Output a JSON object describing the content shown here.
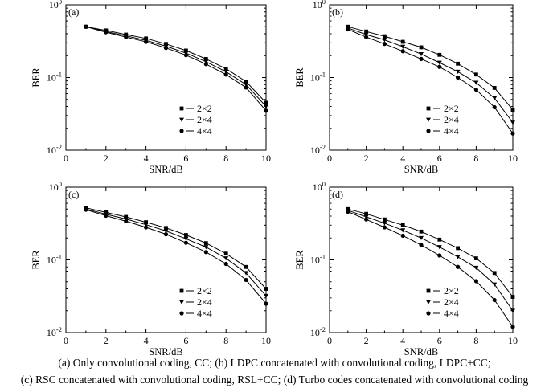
{
  "caption": {
    "line1": "(a)  Only convolutional coding, CC; (b) LDPC concatenated with convolutional coding, LDPC+CC;",
    "line2": "(c) RSC concatenated with convolutional coding, RSL+CC; (d) Turbo codes concatenated with convolutional coding"
  },
  "chart_data": [
    {
      "panel": "(a)",
      "type": "line",
      "xlabel": "SNR/dB",
      "ylabel": "BER",
      "xlim": [
        0,
        10
      ],
      "ylim": [
        0.01,
        1
      ],
      "yscale": "log",
      "xticks": [
        0,
        2,
        4,
        6,
        8,
        10
      ],
      "legend_position": "lower-right",
      "x": [
        1,
        2,
        3,
        4,
        5,
        6,
        7,
        8,
        9,
        10
      ],
      "series": [
        {
          "name": "2×2",
          "marker": "square",
          "values": [
            0.5,
            0.445,
            0.39,
            0.345,
            0.29,
            0.235,
            0.18,
            0.132,
            0.088,
            0.045
          ]
        },
        {
          "name": "2×4",
          "marker": "triangle-down",
          "values": [
            0.5,
            0.43,
            0.375,
            0.325,
            0.27,
            0.217,
            0.165,
            0.12,
            0.08,
            0.04
          ]
        },
        {
          "name": "4×4",
          "marker": "circle",
          "values": [
            0.5,
            0.42,
            0.36,
            0.31,
            0.255,
            0.203,
            0.153,
            0.11,
            0.073,
            0.035
          ]
        }
      ]
    },
    {
      "panel": "(b)",
      "type": "line",
      "xlabel": "SNR/dB",
      "ylabel": "BER",
      "xlim": [
        0,
        10
      ],
      "ylim": [
        0.01,
        1
      ],
      "yscale": "log",
      "xticks": [
        0,
        2,
        4,
        6,
        8,
        10
      ],
      "legend_position": "lower-right",
      "x": [
        1,
        2,
        3,
        4,
        5,
        6,
        7,
        8,
        9,
        10
      ],
      "series": [
        {
          "name": "2×2",
          "marker": "square",
          "values": [
            0.5,
            0.43,
            0.37,
            0.31,
            0.26,
            0.205,
            0.155,
            0.11,
            0.072,
            0.036
          ]
        },
        {
          "name": "2×4",
          "marker": "triangle-down",
          "values": [
            0.48,
            0.39,
            0.33,
            0.265,
            0.21,
            0.16,
            0.12,
            0.085,
            0.052,
            0.024
          ]
        },
        {
          "name": "4×4",
          "marker": "circle",
          "values": [
            0.46,
            0.36,
            0.29,
            0.23,
            0.18,
            0.14,
            0.1,
            0.068,
            0.039,
            0.017
          ]
        }
      ]
    },
    {
      "panel": "(c)",
      "type": "line",
      "xlabel": "SNR/dB",
      "ylabel": "BER",
      "xlim": [
        0,
        10
      ],
      "ylim": [
        0.01,
        1
      ],
      "yscale": "log",
      "xticks": [
        0,
        2,
        4,
        6,
        8,
        10
      ],
      "legend_position": "lower-right",
      "x": [
        1,
        2,
        3,
        4,
        5,
        6,
        7,
        8,
        9,
        10
      ],
      "series": [
        {
          "name": "2×2",
          "marker": "square",
          "values": [
            0.52,
            0.45,
            0.39,
            0.33,
            0.275,
            0.22,
            0.17,
            0.122,
            0.08,
            0.04
          ]
        },
        {
          "name": "2×4",
          "marker": "triangle-down",
          "values": [
            0.5,
            0.425,
            0.365,
            0.305,
            0.25,
            0.195,
            0.15,
            0.105,
            0.066,
            0.032
          ]
        },
        {
          "name": "4×4",
          "marker": "circle",
          "values": [
            0.49,
            0.405,
            0.34,
            0.28,
            0.225,
            0.172,
            0.128,
            0.088,
            0.053,
            0.025
          ]
        }
      ]
    },
    {
      "panel": "(d)",
      "type": "line",
      "xlabel": "SNR/dB",
      "ylabel": "BER",
      "xlim": [
        0,
        10
      ],
      "ylim": [
        0.01,
        1
      ],
      "yscale": "log",
      "xticks": [
        0,
        2,
        4,
        6,
        8,
        10
      ],
      "legend_position": "lower-right",
      "x": [
        1,
        2,
        3,
        4,
        5,
        6,
        7,
        8,
        9,
        10
      ],
      "series": [
        {
          "name": "2×2",
          "marker": "square",
          "values": [
            0.5,
            0.43,
            0.36,
            0.3,
            0.245,
            0.19,
            0.145,
            0.105,
            0.066,
            0.031
          ]
        },
        {
          "name": "2×4",
          "marker": "triangle-down",
          "values": [
            0.48,
            0.39,
            0.32,
            0.255,
            0.2,
            0.15,
            0.11,
            0.078,
            0.046,
            0.02
          ]
        },
        {
          "name": "4×4",
          "marker": "circle",
          "values": [
            0.46,
            0.36,
            0.28,
            0.215,
            0.16,
            0.115,
            0.08,
            0.051,
            0.028,
            0.012
          ]
        }
      ]
    }
  ]
}
